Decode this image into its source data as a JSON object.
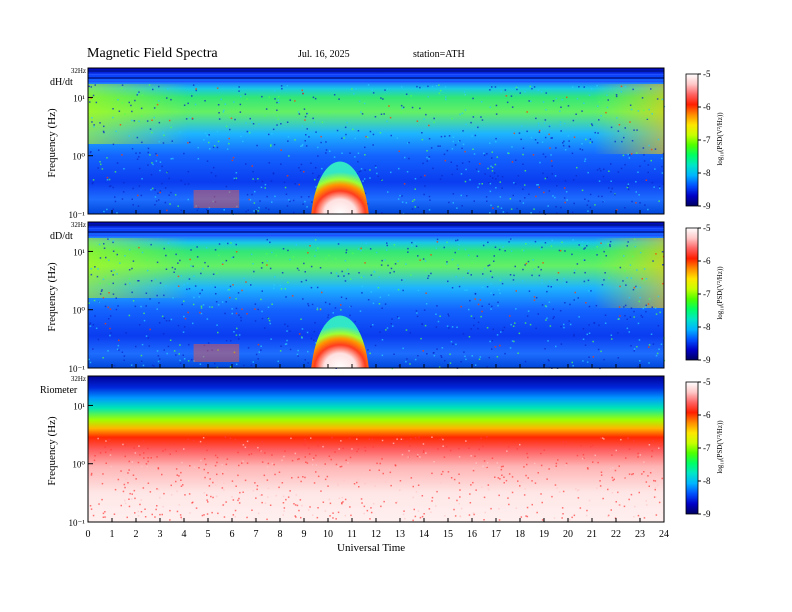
{
  "header": {
    "title": "Magnetic  Field  Spectra",
    "date": "Jul.  16, 2025",
    "station": "station=ATH"
  },
  "colors": {
    "colormap": [
      "#000060",
      "#0000c8",
      "#0050ff",
      "#00b4ff",
      "#00e6c8",
      "#00ff64",
      "#50ff00",
      "#c8ff00",
      "#ffe600",
      "#ff8c00",
      "#ff1e00",
      "#ff6464",
      "#ffc8c8",
      "#ffffff"
    ]
  },
  "chart_data": [
    {
      "type": "heatmap",
      "panel_label": "dH/dt",
      "ylabel": "Frequency  (Hz)",
      "y_scale": "log",
      "ylim_hz": [
        0.1,
        32
      ],
      "y_ticks": [
        "10⁻¹",
        "10⁰",
        "10¹"
      ],
      "y_top_label": "32Hz",
      "xlim_hours": [
        0,
        24
      ],
      "colorbar": {
        "label": "log₁₀(PSD(V²/Hz))",
        "range": [
          -9,
          -5
        ],
        "ticks": [
          "-5",
          "-6",
          "-7",
          "-8",
          "-9"
        ]
      }
    },
    {
      "type": "heatmap",
      "panel_label": "dD/dt",
      "ylabel": "Frequency  (Hz)",
      "y_scale": "log",
      "ylim_hz": [
        0.1,
        32
      ],
      "y_ticks": [
        "10⁻¹",
        "10⁰",
        "10¹"
      ],
      "y_top_label": "32Hz",
      "xlim_hours": [
        0,
        24
      ],
      "colorbar": {
        "label": "log₁₀(PSD(V²/Hz))",
        "range": [
          -9,
          -5
        ],
        "ticks": [
          "-5",
          "-6",
          "-7",
          "-8",
          "-9"
        ]
      }
    },
    {
      "type": "heatmap",
      "panel_label": "Riometer",
      "ylabel": "Frequency  (Hz)",
      "y_scale": "log",
      "ylim_hz": [
        0.1,
        32
      ],
      "y_ticks": [
        "10⁻¹",
        "10⁰",
        "10¹"
      ],
      "y_top_label": "32Hz",
      "xlim_hours": [
        0,
        24
      ],
      "colorbar": {
        "label": "log₁₀(PSD(V²/Hz))",
        "range": [
          -9,
          -5
        ],
        "ticks": [
          "-5",
          "-6",
          "-7",
          "-8",
          "-9"
        ]
      }
    }
  ],
  "x_axis": {
    "label": "Universal Time",
    "ticks": [
      "0",
      "1",
      "2",
      "3",
      "4",
      "5",
      "6",
      "7",
      "8",
      "9",
      "10",
      "11",
      "12",
      "13",
      "14",
      "15",
      "16",
      "17",
      "18",
      "19",
      "20",
      "21",
      "22",
      "23",
      "24"
    ]
  }
}
